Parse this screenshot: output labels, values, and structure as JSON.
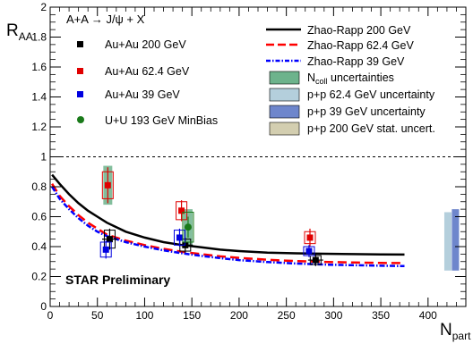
{
  "chart_data": {
    "type": "scatter",
    "title": "",
    "reaction": "A+A → J/ψ + X",
    "annotation": "STAR Preliminary",
    "ylabel_main": "R",
    "ylabel_sub": "AA",
    "xlabel_main": "N",
    "xlabel_sub": "part",
    "xlim": [
      0,
      440
    ],
    "ylim": [
      0,
      2
    ],
    "x_ticks": [
      0,
      50,
      100,
      150,
      200,
      250,
      300,
      350,
      400
    ],
    "y_ticks": [
      0,
      0.2,
      0.4,
      0.6,
      0.8,
      1,
      1.2,
      1.4,
      1.6,
      1.8,
      2
    ],
    "x_tick_labels": [
      "0",
      "50",
      "100",
      "150",
      "200",
      "250",
      "300",
      "350",
      "400"
    ],
    "y_tick_labels": [
      "0",
      "0.2",
      "0.4",
      "0.6",
      "0.8",
      "1",
      "1.2",
      "1.4",
      "1.6",
      "1.8",
      "2"
    ],
    "reference_line": 1,
    "series": [
      {
        "name": "Au+Au 200 GeV",
        "color": "#000000",
        "marker": "square",
        "points": [
          {
            "x": 63,
            "y": 0.45,
            "err": 0.07,
            "sys": 0.06,
            "xerr": 8
          },
          {
            "x": 143,
            "y": 0.41,
            "err": 0.05,
            "sys": 0.04,
            "xerr": 8
          },
          {
            "x": 281,
            "y": 0.31,
            "err": 0.04,
            "sys": 0.03,
            "xerr": 8
          }
        ]
      },
      {
        "name": "Au+Au 62.4 GeV",
        "color": "#e00000",
        "marker": "square",
        "points": [
          {
            "x": 61,
            "y": 0.81,
            "err": 0.12,
            "sys": 0.09
          },
          {
            "x": 139,
            "y": 0.64,
            "err": 0.07,
            "sys": 0.06
          },
          {
            "x": 275,
            "y": 0.46,
            "err": 0.06,
            "sys": 0.04
          }
        ]
      },
      {
        "name": "Au+Au 39 GeV",
        "color": "#0000e0",
        "marker": "square",
        "points": [
          {
            "x": 59,
            "y": 0.38,
            "err": 0.06,
            "sys": 0.05
          },
          {
            "x": 137,
            "y": 0.46,
            "err": 0.06,
            "sys": 0.05
          },
          {
            "x": 274,
            "y": 0.37,
            "err": 0.04,
            "sys": 0.03
          }
        ]
      },
      {
        "name": "U+U 193 GeV MinBias",
        "color": "#1a7a1a",
        "marker": "circle",
        "points": [
          {
            "x": 146,
            "y": 0.53,
            "err": 0.07,
            "sys": 0.1
          }
        ]
      }
    ],
    "ncoll_bands": [
      {
        "x": 61,
        "y": 0.81,
        "half": 0.13
      },
      {
        "x": 146,
        "y": 0.53,
        "half": 0.12
      }
    ],
    "pp_bands": [
      {
        "name": "p+p 62.4 GeV uncertainty",
        "x": 421,
        "low": 0.24,
        "high": 0.63,
        "color": "#b4cfdc"
      },
      {
        "name": "p+p 39 GeV uncertainty",
        "x": 429,
        "low": 0.24,
        "high": 0.65,
        "color": "#6e86cc"
      }
    ],
    "model_curves": [
      {
        "name": "Zhao-Rapp 200 GeV",
        "color": "#000000",
        "dash": "solid",
        "x": [
          2,
          10,
          20,
          30,
          40,
          50,
          60,
          70,
          80,
          100,
          120,
          140,
          160,
          180,
          200,
          230,
          260,
          290,
          320,
          350,
          375
        ],
        "y": [
          0.88,
          0.82,
          0.75,
          0.69,
          0.64,
          0.6,
          0.56,
          0.53,
          0.5,
          0.46,
          0.43,
          0.41,
          0.395,
          0.38,
          0.37,
          0.36,
          0.355,
          0.352,
          0.35,
          0.348,
          0.347
        ]
      },
      {
        "name": "Zhao-Rapp 62.4 GeV",
        "color": "#ff0000",
        "dash": "dashed",
        "x": [
          2,
          10,
          20,
          30,
          40,
          50,
          60,
          70,
          80,
          100,
          120,
          140,
          160,
          180,
          200,
          230,
          260,
          290,
          320,
          350,
          375
        ],
        "y": [
          0.82,
          0.74,
          0.67,
          0.61,
          0.56,
          0.52,
          0.48,
          0.46,
          0.44,
          0.41,
          0.385,
          0.365,
          0.35,
          0.335,
          0.325,
          0.312,
          0.303,
          0.298,
          0.294,
          0.291,
          0.29
        ]
      },
      {
        "name": "Zhao-Rapp 39 GeV",
        "color": "#0000ff",
        "dash": "dashdot",
        "x": [
          2,
          10,
          20,
          30,
          40,
          50,
          60,
          70,
          80,
          100,
          120,
          140,
          160,
          180,
          200,
          230,
          260,
          290,
          320,
          350,
          375
        ],
        "y": [
          0.8,
          0.72,
          0.65,
          0.59,
          0.54,
          0.5,
          0.47,
          0.45,
          0.43,
          0.4,
          0.375,
          0.355,
          0.338,
          0.323,
          0.31,
          0.297,
          0.287,
          0.28,
          0.276,
          0.272,
          0.27
        ]
      }
    ],
    "legend_left": [
      "Au+Au 200 GeV",
      "Au+Au 62.4 GeV",
      "Au+Au 39 GeV",
      "U+U 193 GeV MinBias"
    ],
    "legend_right": [
      {
        "label": "Zhao-Rapp 200 GeV",
        "kind": "line",
        "color": "#000000",
        "dash": "solid"
      },
      {
        "label": "Zhao-Rapp 62.4 GeV",
        "kind": "line",
        "color": "#ff0000",
        "dash": "dashed"
      },
      {
        "label": "Zhao-Rapp 39 GeV",
        "kind": "line",
        "color": "#0000ff",
        "dash": "dashdot"
      },
      {
        "label": "N",
        "label_sub": "coll",
        "label_rest": " uncertainties",
        "kind": "box",
        "color": "#6db38c"
      },
      {
        "label": "p+p 62.4 GeV uncertainty",
        "kind": "box",
        "color": "#b4cfdc"
      },
      {
        "label": "p+p 39 GeV uncertainty",
        "kind": "box",
        "color": "#6e86cc"
      },
      {
        "label": "p+p 200 GeV stat. uncert.",
        "kind": "box",
        "color": "#d3ceb0"
      }
    ],
    "grid": false,
    "legend_placement": "top"
  }
}
